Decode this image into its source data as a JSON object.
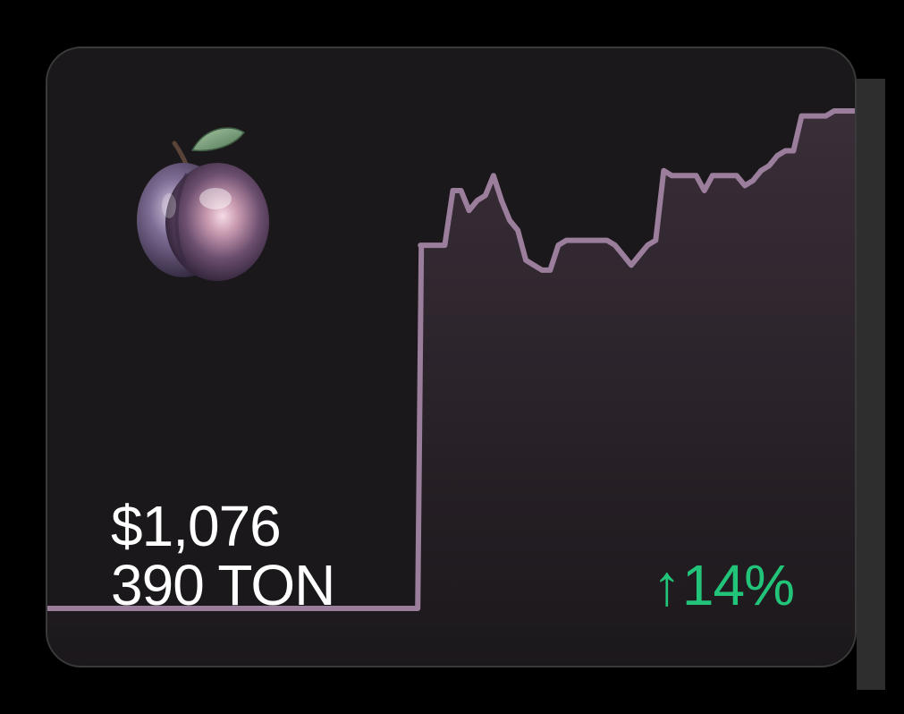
{
  "card": {
    "price_usd": "$1,076",
    "price_ton": "390 TON",
    "change_arrow": "↑",
    "change_value": "14%",
    "icon": "plum-icon"
  },
  "colors": {
    "background": "#1b181b",
    "line": "#9b7d9c",
    "fill_top": "#3a2e39",
    "positive": "#22c47a",
    "text": "#ffffff"
  },
  "chart_data": {
    "type": "area",
    "title": "",
    "xlabel": "",
    "ylabel": "",
    "grid": false,
    "x": [
      0,
      1,
      2,
      3,
      4,
      5,
      6,
      7,
      8,
      9,
      10,
      11,
      12,
      13,
      14,
      15,
      16,
      17,
      18,
      19,
      20,
      21,
      22,
      23,
      24,
      25,
      26,
      27,
      28,
      29,
      30,
      31,
      32,
      33,
      34,
      35,
      36,
      37,
      38,
      39,
      40,
      41,
      42,
      43,
      44,
      45,
      46,
      47,
      48,
      49,
      50,
      51,
      52,
      53,
      54,
      55,
      56,
      57,
      58,
      59,
      60,
      61,
      62,
      63,
      64,
      65,
      66,
      67,
      68,
      69,
      70,
      71,
      72,
      73,
      74,
      75,
      76,
      77,
      78,
      79,
      80,
      81,
      82,
      83,
      84,
      85,
      86,
      87,
      88,
      89,
      90,
      91,
      92,
      93,
      94,
      95,
      96,
      97,
      98,
      99,
      100
    ],
    "values": [
      0.0,
      0.0,
      0.0,
      0.0,
      0.0,
      0.0,
      0.0,
      0.0,
      0.0,
      0.0,
      0.0,
      0.0,
      0.0,
      0.0,
      0.0,
      0.0,
      0.0,
      0.0,
      0.0,
      0.0,
      0.0,
      0.0,
      0.0,
      0.0,
      0.0,
      0.0,
      0.0,
      0.0,
      0.0,
      0.0,
      0.0,
      0.0,
      0.0,
      0.0,
      0.0,
      0.0,
      0.0,
      0.0,
      0.0,
      0.0,
      0.0,
      0.0,
      0.0,
      0.0,
      0.0,
      0.0,
      0.73,
      0.73,
      0.73,
      0.73,
      0.84,
      0.84,
      0.8,
      0.82,
      0.83,
      0.87,
      0.82,
      0.78,
      0.76,
      0.7,
      0.69,
      0.68,
      0.68,
      0.73,
      0.74,
      0.74,
      0.74,
      0.74,
      0.74,
      0.74,
      0.73,
      0.71,
      0.69,
      0.71,
      0.73,
      0.74,
      0.88,
      0.87,
      0.87,
      0.87,
      0.87,
      0.84,
      0.87,
      0.87,
      0.87,
      0.87,
      0.85,
      0.86,
      0.88,
      0.89,
      0.91,
      0.92,
      0.92,
      0.99,
      0.99,
      0.99,
      0.99,
      1.0,
      1.0,
      1.0,
      1.0
    ],
    "ylim": [
      0,
      1
    ]
  }
}
